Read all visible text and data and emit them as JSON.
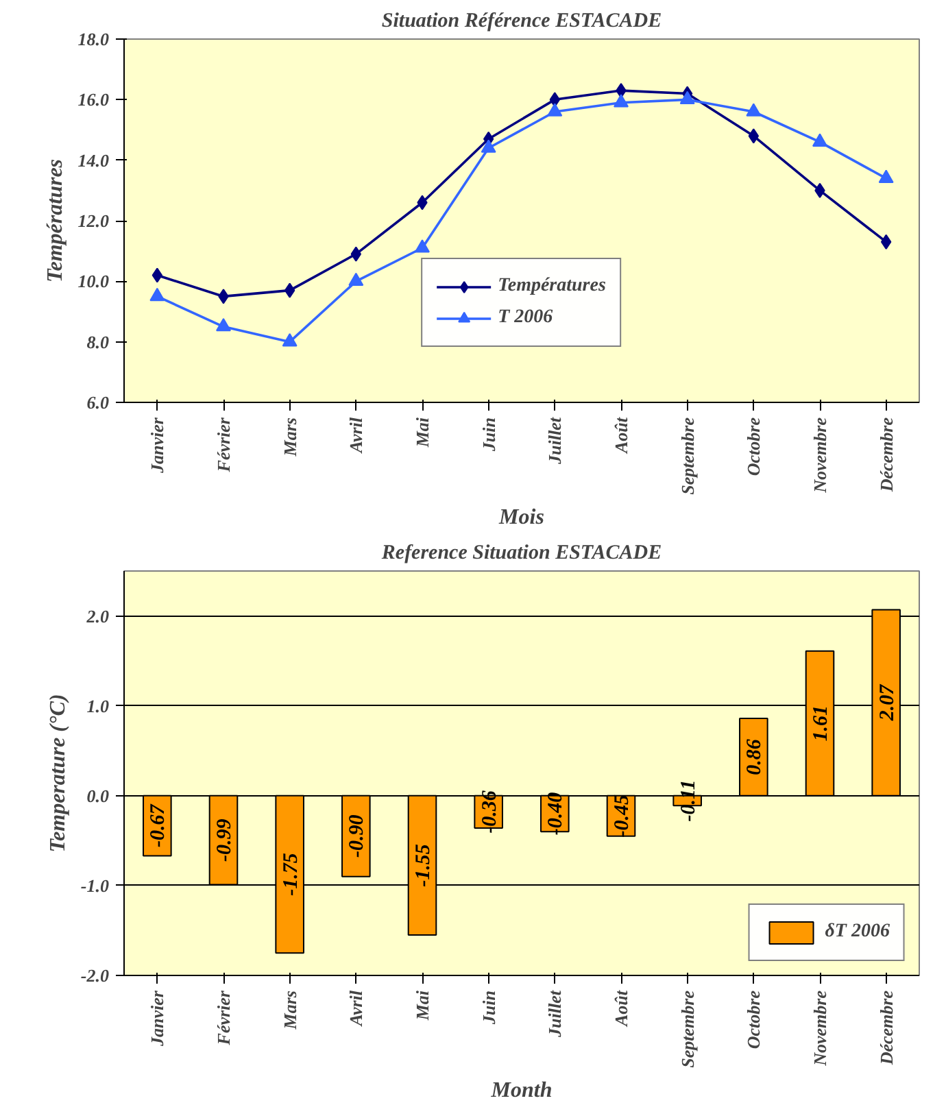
{
  "chart_data": [
    {
      "type": "line",
      "title": "Situation Référence ESTACADE",
      "xlabel": "Mois",
      "ylabel": "Températures",
      "categories": [
        "Janvier",
        "Février",
        "Mars",
        "Avril",
        "Mai",
        "Juin",
        "Juillet",
        "Août",
        "Septembre",
        "Octobre",
        "Novembre",
        "Décembre"
      ],
      "series": [
        {
          "name": "Températures",
          "color": "#000080",
          "marker": "diamond",
          "values": [
            10.2,
            9.5,
            9.7,
            10.9,
            12.6,
            14.7,
            16.0,
            16.3,
            16.2,
            14.8,
            13.0,
            11.3
          ]
        },
        {
          "name": "T 2006",
          "color": "#3366ff",
          "marker": "triangle",
          "values": [
            9.5,
            8.5,
            8.0,
            10.0,
            11.1,
            14.4,
            15.6,
            15.9,
            16.0,
            15.6,
            14.6,
            13.4
          ]
        }
      ],
      "ylim": [
        6,
        18
      ],
      "yticks": [
        {
          "value": 6,
          "label": "6.0"
        },
        {
          "value": 8,
          "label": "8.0"
        },
        {
          "value": 10,
          "label": "10.0"
        },
        {
          "value": 12,
          "label": "12.0"
        },
        {
          "value": 14,
          "label": "14.0"
        },
        {
          "value": 16,
          "label": "16.0"
        },
        {
          "value": 18,
          "label": "18.0"
        }
      ],
      "grid": false,
      "legend": "bottom"
    },
    {
      "type": "bar",
      "title": "Reference Situation ESTACADE",
      "xlabel": "Month",
      "ylabel": "Temperature (°C)",
      "categories": [
        "Janvier",
        "Février",
        "Mars",
        "Avril",
        "Mai",
        "Juin",
        "Juillet",
        "Août",
        "Septembre",
        "Octobre",
        "Novembre",
        "Décembre"
      ],
      "series": [
        {
          "name": "δT 2006",
          "color": "#ff9900",
          "values": [
            -0.67,
            -0.99,
            -1.75,
            -0.9,
            -1.55,
            -0.36,
            -0.4,
            -0.45,
            -0.11,
            0.86,
            1.61,
            2.07
          ]
        }
      ],
      "value_labels": [
        "-0.67",
        "-0.99",
        "-1.75",
        "-0.90",
        "-1.55",
        "-0.36",
        "-0.40",
        "-0.45",
        "-0.11",
        "0.86",
        "1.61",
        "2.07"
      ],
      "ylim": [
        -2,
        2.5
      ],
      "yticks": [
        {
          "value": -2,
          "label": "-2.0"
        },
        {
          "value": -1,
          "label": "-1.0"
        },
        {
          "value": 0,
          "label": "0.0"
        },
        {
          "value": 1,
          "label": "1.0"
        },
        {
          "value": 2,
          "label": "2.0"
        }
      ],
      "grid": "y",
      "legend": "bottom right"
    }
  ]
}
